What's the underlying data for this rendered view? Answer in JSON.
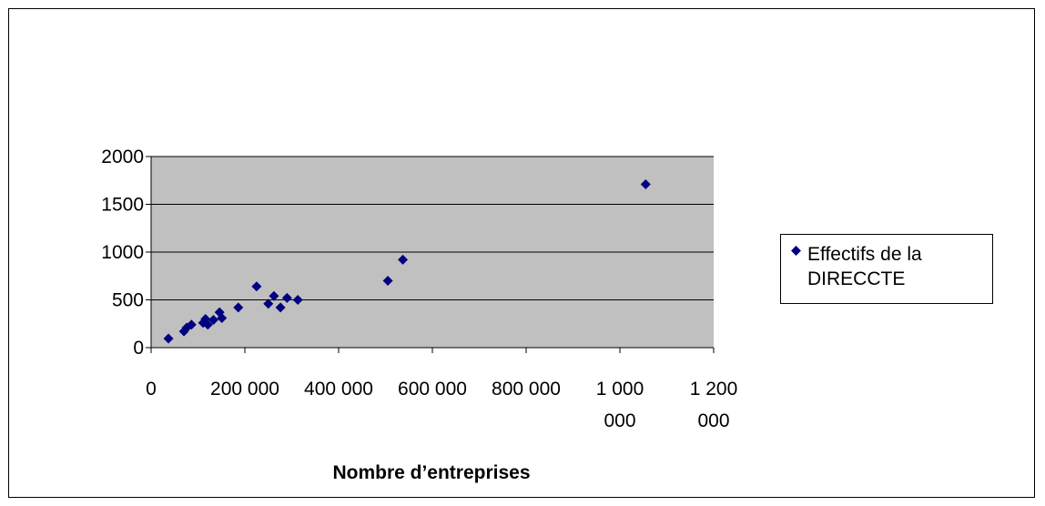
{
  "chart_data": {
    "type": "scatter",
    "title": "",
    "xlabel": "Nombre d’entreprises",
    "ylabel": "",
    "xlim": [
      0,
      1200000
    ],
    "ylim": [
      0,
      2000
    ],
    "grid": {
      "x": false,
      "y": true
    },
    "plot_background": "#c0c0c0",
    "marker_color": "#000080",
    "marker": "diamond",
    "legend_position": "right",
    "x_ticks": [
      {
        "value": 0,
        "lines": [
          "0"
        ]
      },
      {
        "value": 200000,
        "lines": [
          "200 000"
        ]
      },
      {
        "value": 400000,
        "lines": [
          "400 000"
        ]
      },
      {
        "value": 600000,
        "lines": [
          "600 000"
        ]
      },
      {
        "value": 800000,
        "lines": [
          "800 000"
        ]
      },
      {
        "value": 1000000,
        "lines": [
          "1 000",
          "000"
        ]
      },
      {
        "value": 1200000,
        "lines": [
          "1 200",
          "000"
        ]
      }
    ],
    "y_ticks": [
      {
        "value": 0,
        "label": "0"
      },
      {
        "value": 500,
        "label": "500"
      },
      {
        "value": 1000,
        "label": "1000"
      },
      {
        "value": 1500,
        "label": "1500"
      },
      {
        "value": 2000,
        "label": "2000"
      }
    ],
    "series": [
      {
        "name": "Effectifs de la DIRECCTE",
        "points": [
          [
            37000,
            95
          ],
          [
            70000,
            170
          ],
          [
            76000,
            210
          ],
          [
            86000,
            240
          ],
          [
            111000,
            260
          ],
          [
            116000,
            300
          ],
          [
            121000,
            240
          ],
          [
            133000,
            290
          ],
          [
            146000,
            370
          ],
          [
            151000,
            310
          ],
          [
            186000,
            420
          ],
          [
            225000,
            640
          ],
          [
            250000,
            460
          ],
          [
            262000,
            540
          ],
          [
            276000,
            420
          ],
          [
            290000,
            520
          ],
          [
            313000,
            500
          ],
          [
            505000,
            700
          ],
          [
            537000,
            920
          ],
          [
            1055000,
            1710
          ]
        ]
      }
    ]
  }
}
